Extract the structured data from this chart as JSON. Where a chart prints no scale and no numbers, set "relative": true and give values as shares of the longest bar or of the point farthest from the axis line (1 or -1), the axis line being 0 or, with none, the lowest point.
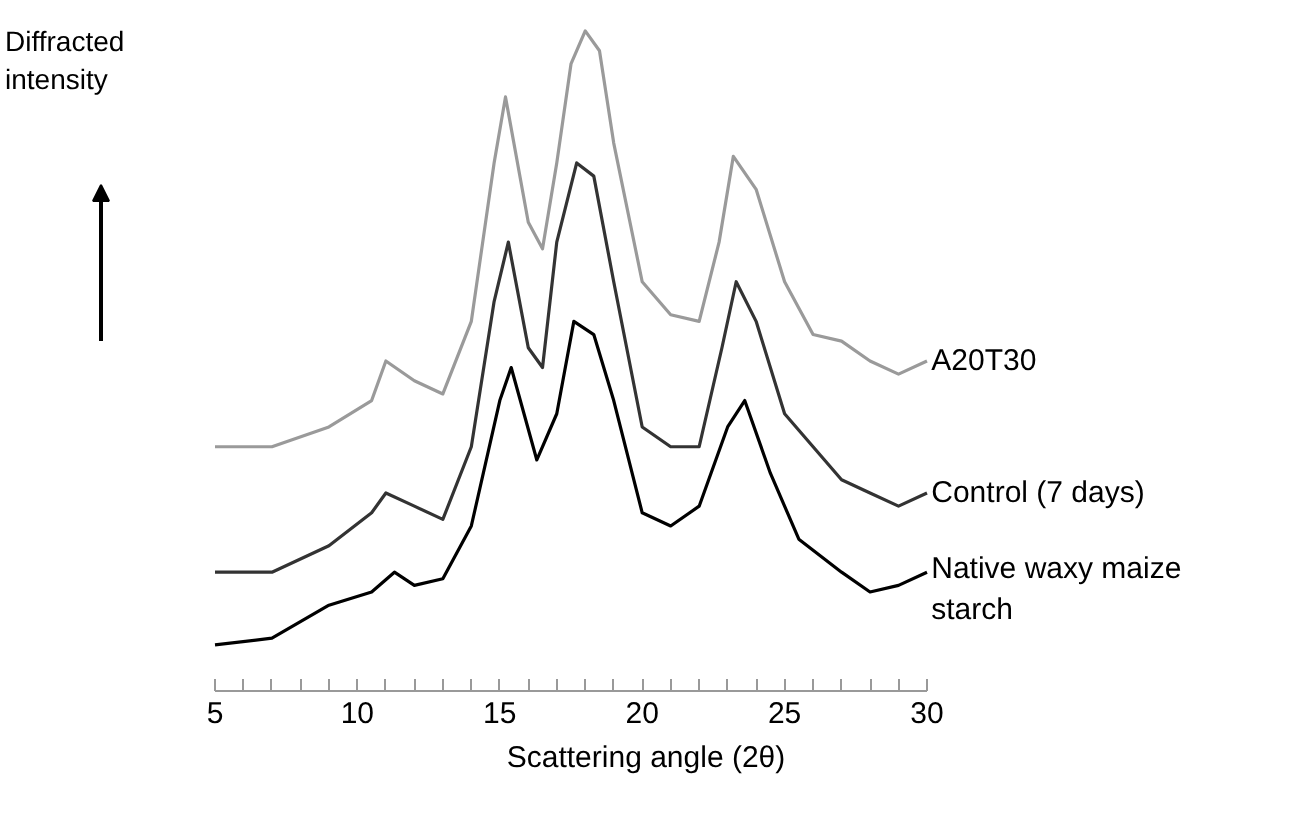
{
  "chart_data": {
    "type": "line",
    "relative": true,
    "xlabel": "Scattering angle (2θ)",
    "ylabel": "Diffracted intensity",
    "xlim": [
      5,
      30
    ],
    "xticks": [
      5,
      10,
      15,
      20,
      25,
      30
    ],
    "grid": false,
    "series": [
      {
        "name": "A20T30",
        "color": "#9a9a9a",
        "x": [
          5,
          7,
          9,
          10.5,
          11,
          12,
          13,
          14,
          14.8,
          15.2,
          16,
          16.5,
          17,
          17.5,
          18,
          18.5,
          19,
          20,
          21,
          22,
          22.7,
          23.2,
          24,
          25,
          26,
          27,
          28,
          29,
          30
        ],
        "values": [
          0.37,
          0.37,
          0.4,
          0.44,
          0.5,
          0.47,
          0.45,
          0.56,
          0.8,
          0.9,
          0.71,
          0.67,
          0.8,
          0.95,
          1.0,
          0.97,
          0.83,
          0.62,
          0.57,
          0.56,
          0.68,
          0.81,
          0.76,
          0.62,
          0.54,
          0.53,
          0.5,
          0.48,
          0.5
        ]
      },
      {
        "name": "Control (7 days)",
        "color": "#333333",
        "x": [
          5,
          7,
          9,
          10.5,
          11,
          12,
          13,
          14,
          14.8,
          15.3,
          16,
          16.5,
          17,
          17.7,
          18.3,
          19,
          20,
          21,
          22,
          22.8,
          23.3,
          24,
          25,
          26,
          27,
          28,
          29,
          30
        ],
        "values": [
          0.18,
          0.18,
          0.22,
          0.27,
          0.3,
          0.28,
          0.26,
          0.37,
          0.59,
          0.68,
          0.52,
          0.49,
          0.68,
          0.8,
          0.78,
          0.62,
          0.4,
          0.37,
          0.37,
          0.52,
          0.62,
          0.56,
          0.42,
          0.37,
          0.32,
          0.3,
          0.28,
          0.3
        ]
      },
      {
        "name": "Native waxy maize starch",
        "color": "#000000",
        "x": [
          5,
          7,
          9,
          10.5,
          11.3,
          12,
          13,
          14,
          15,
          15.4,
          16.3,
          17,
          17.6,
          18.3,
          19,
          20,
          21,
          22,
          23,
          23.6,
          24.5,
          25.5,
          27,
          28,
          29,
          30
        ],
        "values": [
          0.07,
          0.08,
          0.13,
          0.15,
          0.18,
          0.16,
          0.17,
          0.25,
          0.44,
          0.49,
          0.35,
          0.42,
          0.56,
          0.54,
          0.44,
          0.27,
          0.25,
          0.28,
          0.4,
          0.44,
          0.33,
          0.23,
          0.18,
          0.15,
          0.16,
          0.18
        ]
      }
    ]
  }
}
